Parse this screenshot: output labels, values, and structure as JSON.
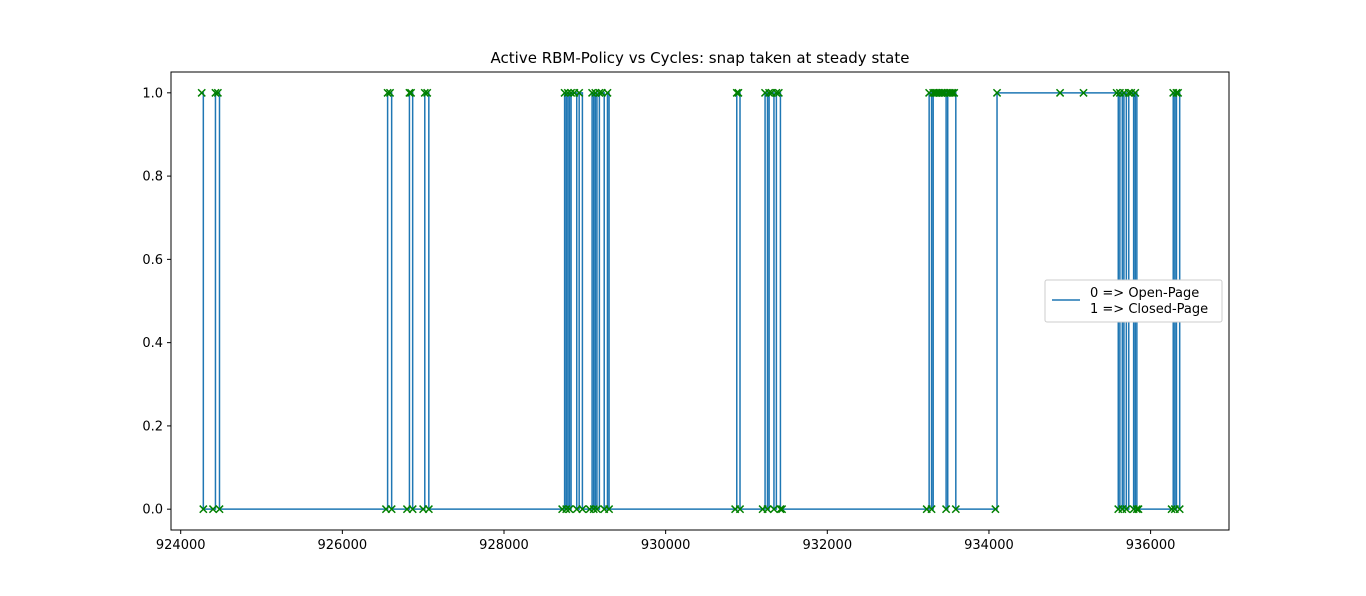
{
  "chart_data": {
    "type": "line",
    "title": "Active RBM-Policy vs Cycles: snap taken at steady state",
    "xlabel": "",
    "ylabel": "",
    "xlim": [
      923880,
      936970
    ],
    "ylim": [
      -0.05,
      1.05
    ],
    "xticks": [
      924000,
      926000,
      928000,
      930000,
      932000,
      934000,
      936000
    ],
    "xtick_labels": [
      "924000",
      "926000",
      "928000",
      "930000",
      "932000",
      "934000",
      "936000"
    ],
    "yticks": [
      0.0,
      0.2,
      0.4,
      0.6,
      0.8,
      1.0
    ],
    "ytick_labels": [
      "0.0",
      "0.2",
      "0.4",
      "0.6",
      "0.8",
      "1.0"
    ],
    "grid": false,
    "legend": {
      "placement": "right",
      "entries": [
        "0 => Open-Page",
        "1 => Closed-Page"
      ]
    },
    "line_color": "#1f77b4",
    "marker_color": "#008000",
    "marker": "x",
    "step": "post",
    "series": [
      {
        "x": [
          924260,
          924280,
          924400,
          924430,
          924460,
          924480,
          926540,
          926560,
          926590,
          926610,
          926800,
          926830,
          926850,
          926870,
          927000,
          927020,
          927050,
          927070,
          928720,
          928750,
          928770,
          928790,
          928810,
          928830,
          928870,
          928900,
          928930,
          928970,
          929060,
          929090,
          929110,
          929130,
          929150,
          929180,
          929210,
          929240,
          929280,
          929300,
          930860,
          930880,
          930900,
          930920,
          931200,
          931230,
          931260,
          931280,
          931310,
          931340,
          931370,
          931400,
          931420,
          931440,
          933230,
          933260,
          933290,
          933310,
          933330,
          933350,
          933370,
          933390,
          933410,
          933430,
          933450,
          933470,
          933490,
          933510,
          933530,
          933550,
          933570,
          933590,
          934080,
          934100,
          934880,
          935170,
          935580,
          935600,
          935620,
          935650,
          935670,
          935700,
          935730,
          935760,
          935790,
          935810,
          935830,
          935850,
          936260,
          936280,
          936300,
          936320,
          936340,
          936360
        ],
        "values": [
          1,
          0,
          0,
          1,
          1,
          0,
          0,
          1,
          1,
          0,
          0,
          1,
          1,
          0,
          0,
          1,
          1,
          0,
          0,
          1,
          0,
          1,
          0,
          1,
          1,
          0,
          1,
          0,
          0,
          1,
          0,
          1,
          0,
          1,
          1,
          0,
          1,
          0,
          0,
          1,
          1,
          0,
          0,
          1,
          0,
          1,
          1,
          0,
          1,
          1,
          0,
          0,
          0,
          1,
          0,
          1,
          1,
          1,
          1,
          1,
          1,
          1,
          1,
          0,
          1,
          1,
          1,
          1,
          1,
          0,
          0,
          1,
          1,
          1,
          1,
          0,
          1,
          0,
          1,
          0,
          1,
          1,
          0,
          1,
          0,
          0,
          0,
          1,
          0,
          1,
          1,
          0
        ]
      }
    ]
  }
}
